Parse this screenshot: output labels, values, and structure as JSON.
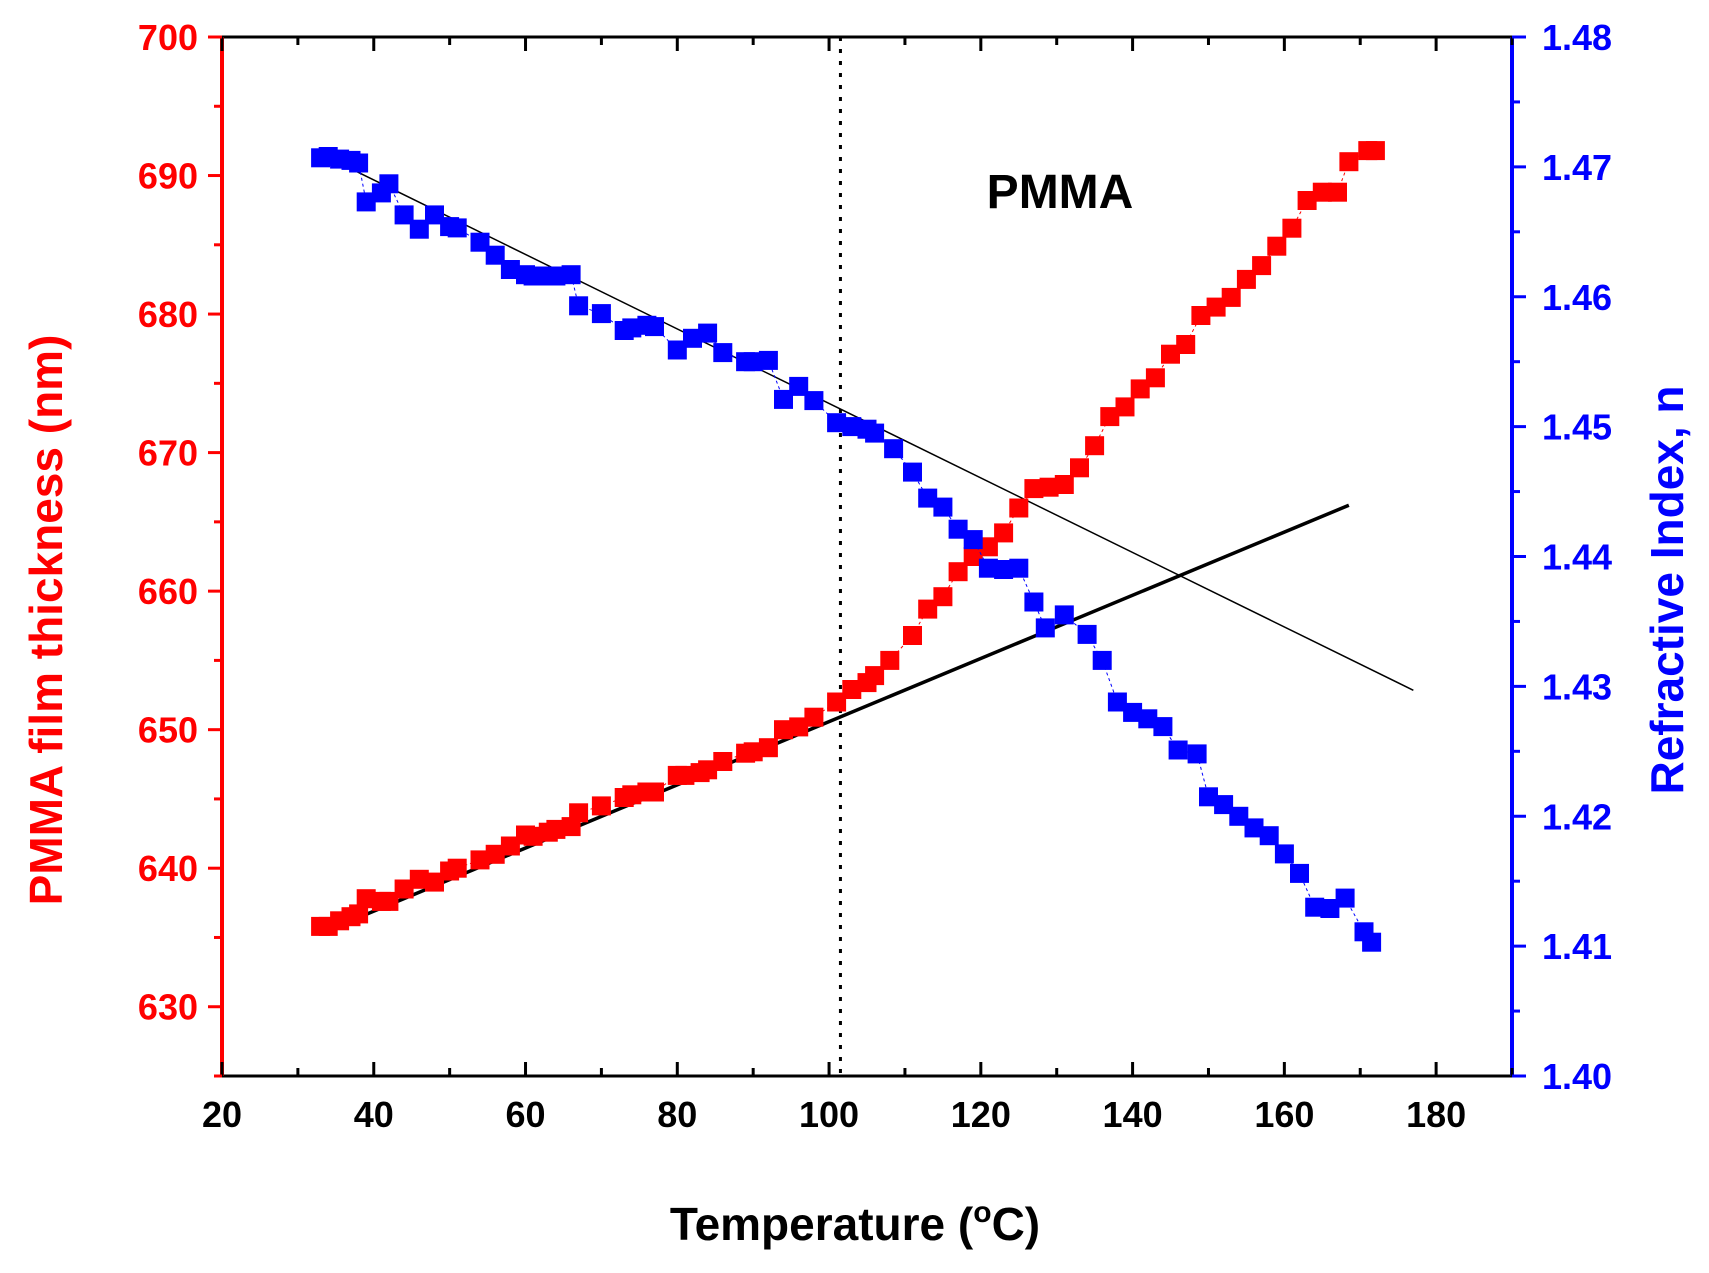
{
  "chart_data": {
    "type": "scatter",
    "title": "",
    "annotation": "PMMA",
    "xlabel": "Temperature (",
    "xlabel_sup": "o",
    "xlabel_tail": "C)",
    "ylabel_left": "PMMA film thickness (nm)",
    "ylabel_right": "Refractive Index, n",
    "xlim": [
      20,
      190
    ],
    "ylim_left": [
      625,
      700
    ],
    "ylim_right": [
      1.4,
      1.48
    ],
    "x_ticks": [
      "20",
      "40",
      "60",
      "80",
      "100",
      "120",
      "140",
      "160",
      "180"
    ],
    "y_left_ticks": [
      "630",
      "640",
      "650",
      "660",
      "670",
      "680",
      "690",
      "700"
    ],
    "y_right_ticks": [
      "1.40",
      "1.41",
      "1.42",
      "1.43",
      "1.44",
      "1.45",
      "1.46",
      "1.47",
      "1.48"
    ],
    "glass_transition_x": 101.5,
    "colors": {
      "thickness": "#ff0000",
      "refractive": "#0000ff",
      "fit": "#000000"
    },
    "series": [
      {
        "name": "PMMA film thickness",
        "axis": "left",
        "x": [
          33,
          34,
          35.5,
          37,
          38,
          39,
          41,
          42,
          44,
          46,
          48,
          50,
          51,
          54,
          56,
          58,
          60,
          61,
          63,
          64,
          66,
          67,
          70,
          73,
          74,
          76,
          77,
          80,
          81,
          83,
          84,
          86,
          89,
          90,
          92,
          94,
          96,
          98,
          101,
          103,
          105,
          106,
          108,
          111,
          113,
          115,
          117,
          119,
          121,
          123,
          125,
          127,
          129,
          131,
          133,
          135,
          137,
          139,
          141,
          143,
          145,
          147,
          149,
          151,
          153,
          155,
          157,
          159,
          161,
          163,
          165,
          167,
          168.5,
          171,
          172
        ],
        "values": [
          635.8,
          635.8,
          636.2,
          636.5,
          636.7,
          637.8,
          637.6,
          637.6,
          638.5,
          639.2,
          639.0,
          639.8,
          640.0,
          640.6,
          641.0,
          641.6,
          642.4,
          642.3,
          642.6,
          642.8,
          643.0,
          644.0,
          644.5,
          645.1,
          645.3,
          645.5,
          645.5,
          646.7,
          646.7,
          646.9,
          647.1,
          647.7,
          648.3,
          648.4,
          648.7,
          650.0,
          650.2,
          650.9,
          652.0,
          652.9,
          653.4,
          653.9,
          655.0,
          656.8,
          658.7,
          659.6,
          661.4,
          662.5,
          663.2,
          664.2,
          666.0,
          667.4,
          667.5,
          667.7,
          668.9,
          670.5,
          672.6,
          673.3,
          674.6,
          675.4,
          677.1,
          677.8,
          679.9,
          680.5,
          681.2,
          682.5,
          683.5,
          684.9,
          686.2,
          688.2,
          688.8,
          688.8,
          691.0,
          691.8,
          691.8
        ]
      },
      {
        "name": "Refractive Index",
        "axis": "right",
        "x": [
          33,
          34,
          35.5,
          37,
          38,
          39,
          41,
          42,
          44,
          46,
          48,
          50,
          51,
          54,
          56,
          58,
          60,
          61,
          63,
          64,
          66,
          67,
          70,
          73,
          74,
          76,
          77,
          80,
          82,
          84,
          86,
          89,
          90,
          92,
          94,
          96,
          98,
          101,
          103,
          105,
          106,
          108.5,
          111,
          113,
          115,
          117,
          119,
          121,
          123,
          125,
          127,
          128.5,
          131,
          134,
          136,
          138,
          140,
          142,
          144,
          146,
          148.5,
          150,
          152,
          154,
          156,
          158,
          160,
          162,
          164,
          166,
          168,
          170.5,
          171.5
        ],
        "values": [
          1.4707,
          1.4708,
          1.4706,
          1.4705,
          1.4703,
          1.4673,
          1.468,
          1.4687,
          1.4663,
          1.4652,
          1.4663,
          1.4654,
          1.4653,
          1.4642,
          1.4632,
          1.4621,
          1.4617,
          1.4616,
          1.4616,
          1.4616,
          1.4617,
          1.4593,
          1.4587,
          1.4574,
          1.4576,
          1.4578,
          1.4577,
          1.4559,
          1.4568,
          1.4572,
          1.4557,
          1.455,
          1.455,
          1.4551,
          1.4521,
          1.4531,
          1.452,
          1.4503,
          1.45,
          1.4498,
          1.4495,
          1.4483,
          1.4465,
          1.4445,
          1.4438,
          1.4421,
          1.4413,
          1.4391,
          1.439,
          1.4391,
          1.4365,
          1.4345,
          1.4355,
          1.434,
          1.432,
          1.4288,
          1.428,
          1.4275,
          1.4269,
          1.4251,
          1.4248,
          1.4215,
          1.4209,
          1.42,
          1.4191,
          1.4185,
          1.4171,
          1.4156,
          1.413,
          1.4129,
          1.4137,
          1.4111,
          1.4103
        ]
      },
      {
        "name": "Thickness linear fit",
        "axis": "left",
        "type": "line",
        "x": [
          33,
          168.5
        ],
        "values": [
          635.3,
          666.2
        ]
      },
      {
        "name": "Refractive index linear fit",
        "axis": "right",
        "type": "line",
        "x": [
          33,
          177
        ],
        "values": [
          1.471,
          1.4297
        ]
      }
    ]
  }
}
